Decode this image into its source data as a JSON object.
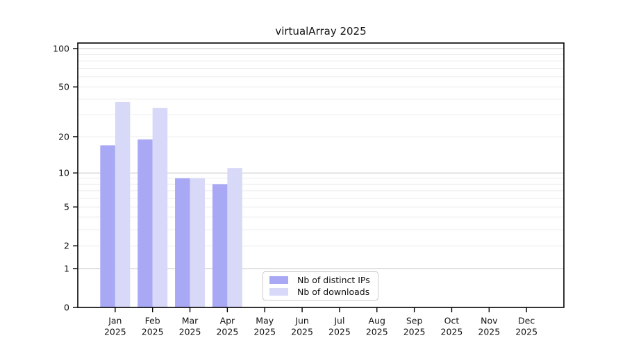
{
  "chart_data": {
    "type": "bar",
    "title": "virtualArray 2025",
    "categories": [
      "Jan",
      "Feb",
      "Mar",
      "Apr",
      "May",
      "Jun",
      "Jul",
      "Aug",
      "Sep",
      "Oct",
      "Nov",
      "Dec"
    ],
    "x_sub_label": "2025",
    "series": [
      {
        "name": "Nb of distinct IPs",
        "color": "#a8a8f5",
        "values": [
          17,
          19,
          9,
          8,
          0,
          0,
          0,
          0,
          0,
          0,
          0,
          0
        ]
      },
      {
        "name": "Nb of downloads",
        "color": "#d8d8f8",
        "values": [
          38,
          34,
          9,
          11,
          0,
          0,
          0,
          0,
          0,
          0,
          0,
          0
        ]
      }
    ],
    "y_scale": "log1p",
    "ylim": [
      0,
      100
    ],
    "y_ticks": [
      0,
      1,
      2,
      5,
      10,
      20,
      50,
      100
    ],
    "grid": true,
    "grid_minor_values": [
      2,
      3,
      4,
      5,
      6,
      7,
      8,
      9,
      20,
      30,
      40,
      50,
      60,
      70,
      80,
      90
    ],
    "grid_major_values": [
      1,
      10,
      100
    ],
    "legend_position": "bottom-center",
    "colors": {
      "axis": "#000000",
      "grid_minor": "#ececec",
      "grid_major": "#c4c4c4",
      "text": "#111111"
    }
  }
}
